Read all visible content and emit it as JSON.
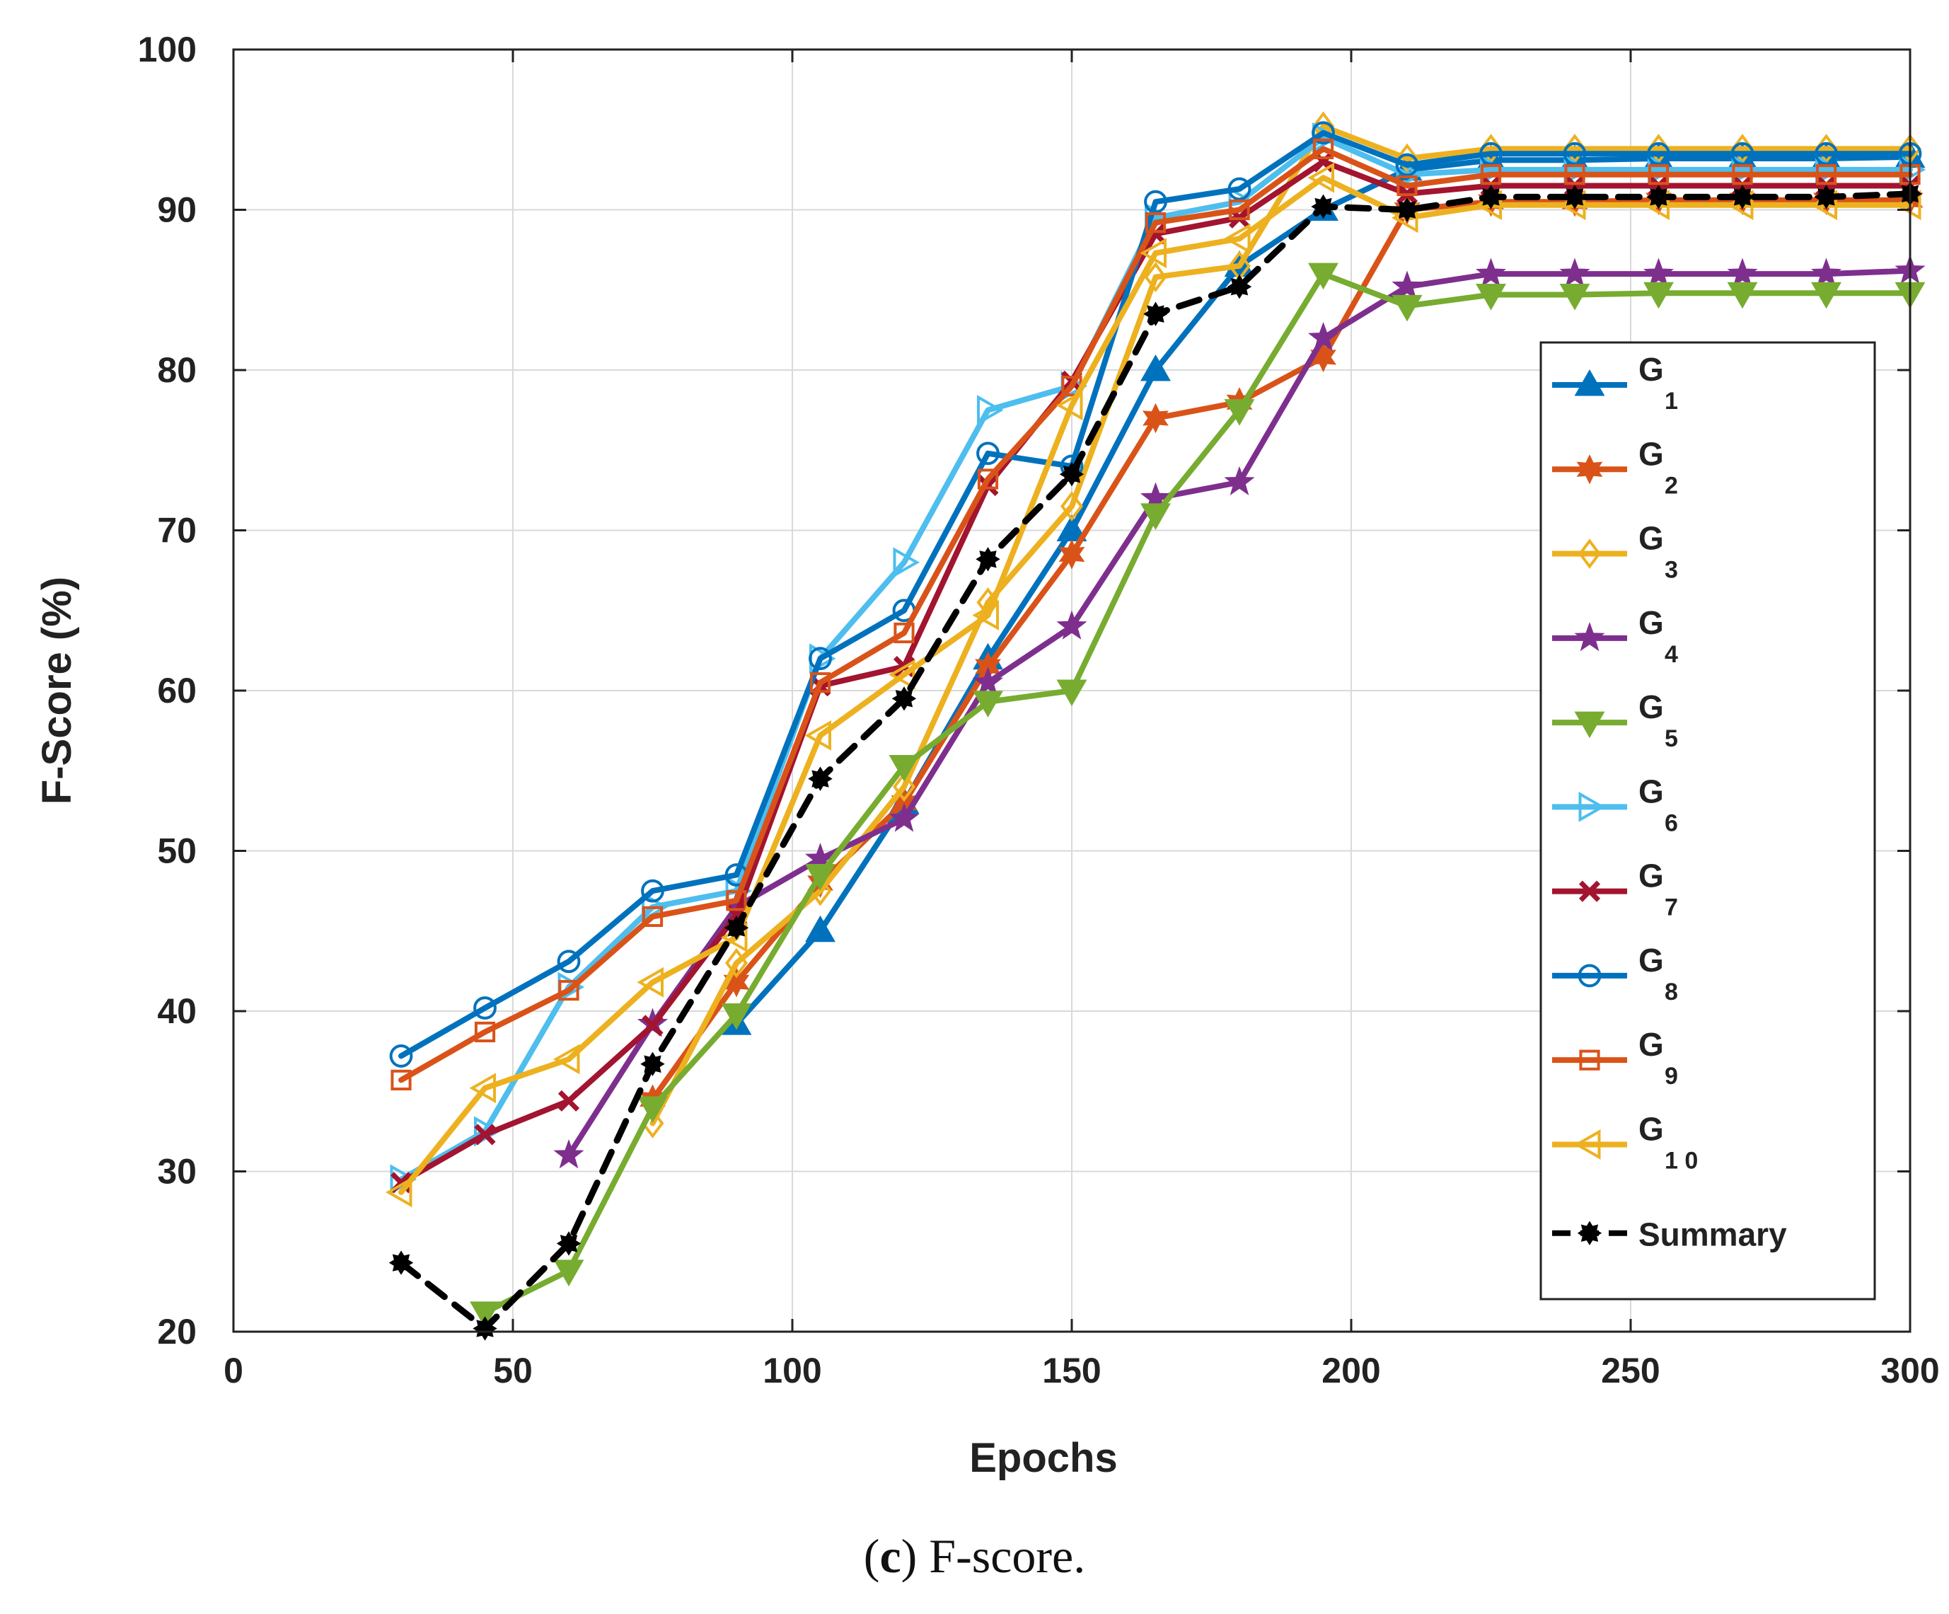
{
  "chart_data": {
    "type": "line",
    "xlabel": "Epochs",
    "ylabel": "F-Score (%)",
    "xlim": [
      0,
      300
    ],
    "ylim": [
      20,
      100
    ],
    "xticks": [
      0,
      50,
      100,
      150,
      200,
      250,
      300
    ],
    "yticks": [
      20,
      30,
      40,
      50,
      60,
      70,
      80,
      90,
      100
    ],
    "xtick_labels": [
      "0",
      "50",
      "100",
      "150",
      "200",
      "250",
      "300"
    ],
    "ytick_labels": [
      "20",
      "30",
      "40",
      "50",
      "60",
      "70",
      "80",
      "90",
      "100"
    ],
    "grid": true,
    "legend_position": "right",
    "series": [
      {
        "name": "G",
        "sub": "1",
        "color": "#0072BD",
        "marker": "triangle-up",
        "dash": false,
        "x": [
          90,
          105,
          120,
          135,
          150,
          165,
          180,
          195,
          210,
          225,
          240,
          255,
          270,
          285,
          300
        ],
        "y": [
          39.2,
          45,
          53,
          62,
          70,
          80,
          86.5,
          90,
          92.5,
          93.1,
          93.1,
          93.2,
          93.2,
          93.2,
          93.3
        ]
      },
      {
        "name": "G",
        "sub": "2",
        "color": "#D95319",
        "marker": "hexagram",
        "dash": false,
        "x": [
          75,
          90,
          105,
          120,
          135,
          150,
          165,
          180,
          195,
          210,
          225,
          240,
          255,
          270,
          285,
          300
        ],
        "y": [
          34.5,
          41.8,
          48,
          53,
          61.5,
          68.5,
          77,
          78,
          80.8,
          90,
          90.5,
          90.5,
          90.6,
          90.6,
          90.6,
          90.6
        ]
      },
      {
        "name": "G",
        "sub": "3",
        "color": "#EDB120",
        "marker": "diamond",
        "dash": false,
        "x": [
          75,
          90,
          105,
          120,
          135,
          150,
          165,
          180,
          195,
          210,
          225,
          240,
          255,
          270,
          285,
          300
        ],
        "y": [
          33,
          43,
          47.5,
          54,
          65.5,
          71.5,
          85.8,
          86.5,
          95.2,
          93.2,
          93.8,
          93.8,
          93.8,
          93.8,
          93.8,
          93.8
        ]
      },
      {
        "name": "G",
        "sub": "4",
        "color": "#7E2F8E",
        "marker": "pentagram",
        "dash": false,
        "x": [
          60,
          75,
          90,
          105,
          120,
          135,
          150,
          165,
          180,
          195,
          210,
          225,
          240,
          255,
          270,
          285,
          300
        ],
        "y": [
          31,
          39.2,
          46.5,
          49.5,
          52,
          60.5,
          64,
          72,
          73,
          82,
          85.2,
          86,
          86,
          86,
          86,
          86,
          86.2
        ]
      },
      {
        "name": "G",
        "sub": "5",
        "color": "#77AC30",
        "marker": "triangle-down",
        "dash": false,
        "x": [
          45,
          60,
          75,
          90,
          105,
          120,
          135,
          150,
          165,
          180,
          195,
          210,
          225,
          240,
          255,
          270,
          285,
          300
        ],
        "y": [
          21.2,
          23.8,
          34,
          39.8,
          48.5,
          55.3,
          59.3,
          60,
          71,
          77.5,
          86,
          84,
          84.7,
          84.7,
          84.8,
          84.8,
          84.8,
          84.8
        ]
      },
      {
        "name": "G",
        "sub": "6",
        "color": "#4DBEEE",
        "marker": "triangle-right",
        "dash": false,
        "x": [
          30,
          45,
          60,
          75,
          90,
          105,
          120,
          135,
          150,
          165,
          180,
          195,
          210,
          225,
          240,
          255,
          270,
          285,
          300
        ],
        "y": [
          29.5,
          32.5,
          41.5,
          46.5,
          47.5,
          62,
          68,
          77.5,
          79,
          89.5,
          90.5,
          94.5,
          92.2,
          92.5,
          92.5,
          92.5,
          92.5,
          92.5,
          92.5
        ]
      },
      {
        "name": "G",
        "sub": "7",
        "color": "#A2142F",
        "marker": "x",
        "dash": false,
        "x": [
          30,
          45,
          60,
          75,
          90,
          105,
          120,
          135,
          150,
          165,
          180,
          195,
          210,
          225,
          240,
          255,
          270,
          285,
          300
        ],
        "y": [
          29.3,
          32.3,
          34.4,
          39.1,
          46,
          60.3,
          61.5,
          72.8,
          79.3,
          88.5,
          89.5,
          93,
          91,
          91.5,
          91.5,
          91.5,
          91.5,
          91.5,
          91.5
        ]
      },
      {
        "name": "G",
        "sub": "8",
        "color": "#0072BD",
        "marker": "circle",
        "dash": false,
        "x": [
          30,
          45,
          60,
          75,
          90,
          105,
          120,
          135,
          150,
          165,
          180,
          195,
          210,
          225,
          240,
          255,
          270,
          285,
          300
        ],
        "y": [
          37.2,
          40.2,
          43.1,
          47.5,
          48.5,
          62,
          65,
          74.8,
          74,
          90.5,
          91.3,
          94.8,
          92.8,
          93.5,
          93.5,
          93.5,
          93.5,
          93.5,
          93.5
        ]
      },
      {
        "name": "G",
        "sub": "9",
        "color": "#D95319",
        "marker": "square",
        "dash": false,
        "x": [
          30,
          45,
          60,
          75,
          90,
          105,
          120,
          135,
          150,
          165,
          180,
          195,
          210,
          225,
          240,
          255,
          270,
          285,
          300
        ],
        "y": [
          35.7,
          38.7,
          41.3,
          45.9,
          46.9,
          60.5,
          63.6,
          73.2,
          79,
          89.2,
          90,
          93.8,
          91.5,
          92.2,
          92.2,
          92.2,
          92.2,
          92.2,
          92.2
        ]
      },
      {
        "name": "G",
        "sub": "1 0",
        "color": "#EDB120",
        "marker": "triangle-left",
        "dash": false,
        "x": [
          30,
          45,
          60,
          75,
          90,
          105,
          120,
          135,
          150,
          165,
          180,
          195,
          210,
          225,
          240,
          255,
          270,
          285,
          300
        ],
        "y": [
          28.7,
          35.2,
          37,
          41.8,
          44.6,
          57.2,
          61,
          64.7,
          77.8,
          87.3,
          88.2,
          92,
          89.5,
          90.3,
          90.3,
          90.3,
          90.3,
          90.3,
          90.3
        ]
      },
      {
        "name": "Summary",
        "sub": "",
        "color": "#000000",
        "marker": "octagram",
        "dash": true,
        "x": [
          30,
          45,
          60,
          75,
          90,
          105,
          120,
          135,
          150,
          165,
          180,
          195,
          210,
          225,
          240,
          255,
          270,
          285,
          300
        ],
        "y": [
          24.3,
          20.2,
          25.5,
          36.7,
          45.2,
          54.5,
          59.5,
          68.2,
          73.5,
          83.5,
          85.2,
          90.2,
          90,
          90.8,
          90.8,
          90.8,
          90.8,
          90.8,
          91
        ]
      }
    ]
  },
  "caption": {
    "label": "c",
    "text": " F-score."
  }
}
